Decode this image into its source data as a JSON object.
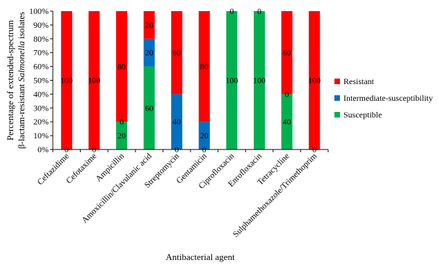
{
  "chart_data": {
    "type": "bar",
    "stacked": true,
    "percent": true,
    "xlabel": "Antibacterial agent",
    "ylabel_line1": "Percentage of extended-spectrum",
    "ylabel_line2_pre": "β-lactam-resistant ",
    "ylabel_line2_italic": "Salmonella",
    "ylabel_line2_post": " isolates",
    "ylim": [
      0,
      100
    ],
    "yticks": [
      "0%",
      "10%",
      "20%",
      "30%",
      "40%",
      "50%",
      "60%",
      "70%",
      "80%",
      "90%",
      "100%"
    ],
    "grid": false,
    "legend_position": "right",
    "categories": [
      "Ceftazidime",
      "Cefotaxime",
      "Ampicillin",
      "Amoxicillin/Clavulanic acid",
      "Streptomycin",
      "Gentamicin",
      "Ciprofloxacin",
      "Enrofloxacin",
      "Tetracycline",
      "Sulphamethoxazole/Trimethoprim"
    ],
    "series": [
      {
        "name": "Susceptible",
        "color": "#00b050",
        "values": [
          0,
          0,
          20,
          60,
          0,
          0,
          100,
          100,
          40,
          0
        ]
      },
      {
        "name": "Intermediate-susceptibility",
        "color": "#0070c0",
        "values": [
          0,
          0,
          0,
          20,
          40,
          20,
          0,
          0,
          0,
          0
        ]
      },
      {
        "name": "Resistant",
        "color": "#ff0000",
        "values": [
          100,
          100,
          80,
          20,
          60,
          80,
          0,
          0,
          60,
          100
        ]
      }
    ],
    "legend_order": [
      "Resistant",
      "Intermediate-susceptibility",
      "Susceptible"
    ]
  }
}
